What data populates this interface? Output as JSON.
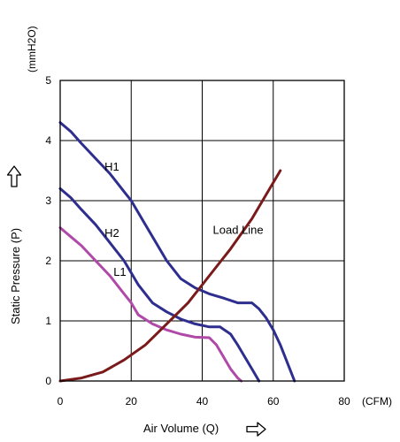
{
  "chart_data": {
    "type": "line",
    "xlabel": "Air Volume (Q)",
    "ylabel": "Static Pressure (P)",
    "x_unit": "(CFM)",
    "y_unit": "(mmH2O)",
    "xlim": [
      0,
      80
    ],
    "ylim": [
      0,
      5
    ],
    "x_ticks": [
      0,
      20,
      40,
      60,
      80
    ],
    "y_ticks": [
      0,
      1,
      2,
      3,
      4,
      5
    ],
    "grid": true,
    "colors": {
      "H1": "#2e2e8f",
      "H2": "#2e2e8f",
      "L1": "#b04aa8",
      "Load Line": "#7a1a1a"
    },
    "series": [
      {
        "name": "H1",
        "x": [
          0,
          3,
          6,
          10,
          14,
          18,
          20,
          22,
          26,
          30,
          34,
          38,
          42,
          46,
          50,
          54,
          56,
          58,
          60,
          62,
          64,
          66
        ],
        "y": [
          4.3,
          4.15,
          3.95,
          3.7,
          3.45,
          3.15,
          3.0,
          2.8,
          2.4,
          2.0,
          1.7,
          1.55,
          1.45,
          1.38,
          1.3,
          1.3,
          1.2,
          1.05,
          0.85,
          0.6,
          0.3,
          0.0
        ]
      },
      {
        "name": "H2",
        "x": [
          0,
          3,
          6,
          10,
          14,
          18,
          20,
          22,
          26,
          30,
          34,
          38,
          42,
          45,
          48,
          50,
          52,
          54,
          56
        ],
        "y": [
          3.2,
          3.05,
          2.85,
          2.6,
          2.3,
          2.0,
          1.8,
          1.6,
          1.3,
          1.15,
          1.03,
          0.95,
          0.9,
          0.9,
          0.78,
          0.6,
          0.4,
          0.2,
          0.0
        ]
      },
      {
        "name": "L1",
        "x": [
          0,
          3,
          6,
          10,
          14,
          18,
          20,
          22,
          26,
          30,
          34,
          38,
          42,
          44,
          46,
          48,
          50,
          51
        ],
        "y": [
          2.55,
          2.4,
          2.25,
          2.0,
          1.75,
          1.45,
          1.3,
          1.1,
          0.95,
          0.85,
          0.78,
          0.73,
          0.72,
          0.6,
          0.4,
          0.2,
          0.05,
          0.0
        ]
      },
      {
        "name": "Load Line",
        "x": [
          0,
          6,
          12,
          18,
          24,
          30,
          36,
          42,
          48,
          54,
          58,
          62
        ],
        "y": [
          0.0,
          0.05,
          0.15,
          0.35,
          0.6,
          0.95,
          1.3,
          1.75,
          2.2,
          2.7,
          3.1,
          3.5
        ]
      }
    ],
    "annotations": [
      {
        "text": "H1",
        "x": 12.5,
        "y": 3.5
      },
      {
        "text": "H2",
        "x": 12.5,
        "y": 2.4
      },
      {
        "text": "L1",
        "x": 15,
        "y": 1.75
      },
      {
        "text": "Load Line",
        "x": 43,
        "y": 2.45
      }
    ]
  }
}
